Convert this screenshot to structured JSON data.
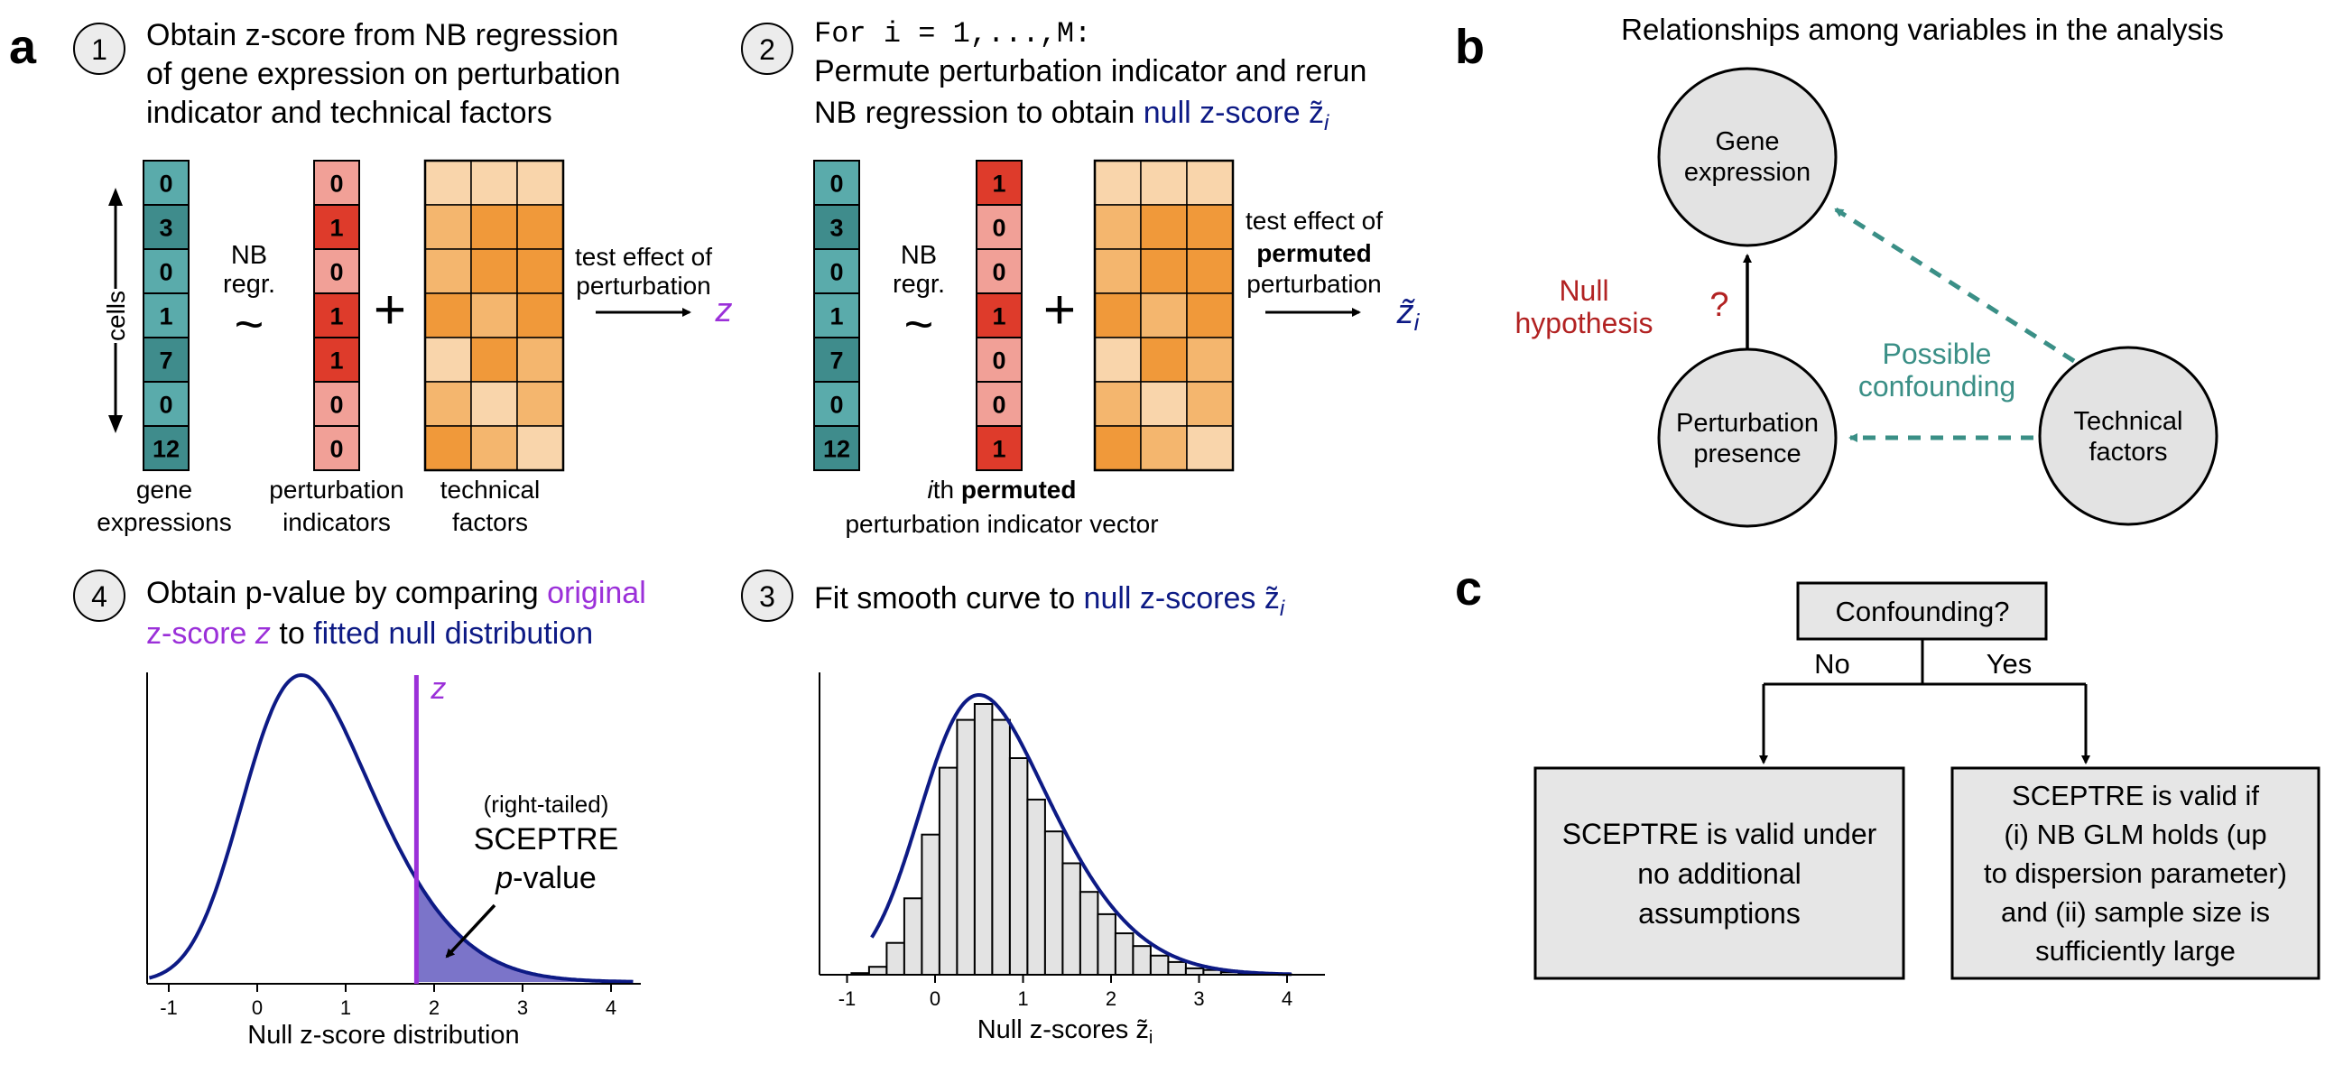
{
  "colors": {
    "teal_dark": "#3f8c8c",
    "teal_light": "#5aabab",
    "red_dark": "#de3b2b",
    "red_light": "#f1a097",
    "orange_dark": "#f0993a",
    "orange_mid": "#f4b66e",
    "orange_light": "#f9d5ab",
    "purple": "#9b30d9",
    "navy": "#0d1a85",
    "null_red": "#b22222",
    "confound_teal": "#3a8f86",
    "circle_fill": "#e3e3e3",
    "box_fill": "#e6e6e6"
  },
  "panel_a": {
    "label": "a",
    "step1": {
      "number": "1",
      "title": [
        "Obtain z-score from NB regression",
        "of gene expression on perturbation",
        "indicator and technical factors"
      ],
      "cells_label": "cells",
      "gene_values": [
        "0",
        "3",
        "0",
        "1",
        "7",
        "0",
        "12"
      ],
      "nb_label": [
        "NB",
        "regr."
      ],
      "tilde": "~",
      "perturbation_values": [
        "0",
        "1",
        "0",
        "1",
        "1",
        "0",
        "0"
      ],
      "plus": "+",
      "test_label": [
        "test effect of",
        "perturbation"
      ],
      "result": "z",
      "captions": {
        "gene": [
          "gene",
          "expressions"
        ],
        "perturbation": [
          "perturbation",
          "indicators"
        ],
        "technical": [
          "technical",
          "factors"
        ]
      }
    },
    "step2": {
      "number": "2",
      "loop": "For i = 1,...,M:",
      "title_line1": "Permute perturbation indicator and rerun",
      "title_line2_prefix": "NB regression to obtain ",
      "title_line2_highlight": "null z-score z̃",
      "title_line2_sub": "i",
      "gene_values": [
        "0",
        "3",
        "0",
        "1",
        "7",
        "0",
        "12"
      ],
      "nb_label": [
        "NB",
        "regr."
      ],
      "tilde": "~",
      "permuted_values": [
        "1",
        "0",
        "0",
        "1",
        "0",
        "0",
        "1"
      ],
      "plus": "+",
      "test_line1": "test effect of",
      "test_line2": "permuted",
      "test_line3": "perturbation",
      "result": "z̃",
      "result_sub": "i",
      "caption_line1_italic": "i",
      "caption_line1_rest": "th ",
      "caption_line1_bold": "permuted",
      "caption_line2": "perturbation indicator vector"
    },
    "step3": {
      "number": "3",
      "title_prefix": "Fit smooth curve to ",
      "title_highlight": "null z-scores z̃",
      "title_sub": "i",
      "xlabel": "Null z-scores z̃",
      "xlabel_sub": "i",
      "ticks": [
        "-1",
        "0",
        "1",
        "2",
        "3",
        "4"
      ]
    },
    "step4": {
      "number": "4",
      "title_line1_prefix": "Obtain p-value by comparing ",
      "title_line1_highlight": "original",
      "title_line2_highlight_a": "z-score ",
      "title_line2_highlight_z": "z",
      "title_line2_mid": " to ",
      "title_line2_navy": "fitted null distribution",
      "z_marker": "z",
      "annotation": [
        "(right-tailed)",
        "SCEPTRE",
        "p",
        "-value"
      ],
      "xlabel": "Null z-score distribution",
      "ticks": [
        "-1",
        "0",
        "1",
        "2",
        "3",
        "4"
      ]
    }
  },
  "panel_b": {
    "label": "b",
    "title": "Relationships among variables in the analysis",
    "gene_node": [
      "Gene",
      "expression"
    ],
    "perturbation_node": [
      "Perturbation",
      "presence"
    ],
    "technical_node": [
      "Technical",
      "factors"
    ],
    "null_label": [
      "Null",
      "hypothesis"
    ],
    "question": "?",
    "confounding_label": [
      "Possible",
      "confounding"
    ]
  },
  "panel_c": {
    "label": "c",
    "question_box": "Confounding?",
    "no": "No",
    "yes": "Yes",
    "left_box": [
      "SCEPTRE is valid under",
      "no additional",
      "assumptions"
    ],
    "right_box": [
      "SCEPTRE is valid if",
      "(i) NB GLM holds (up",
      "to dispersion parameter)",
      "and (ii) sample size is",
      "sufficiently large"
    ]
  },
  "chart_data": [
    {
      "type": "area",
      "curve": "skewed density (right-skewed)",
      "observed_z": 1.8,
      "xlim": [
        -1.3,
        4.3
      ],
      "xticks": [
        -1,
        0,
        1,
        2,
        3,
        4
      ],
      "xlabel": "Null z-score distribution",
      "mode": 0.45,
      "shaded_region": "x >= 1.8"
    },
    {
      "type": "bar",
      "x": [
        -0.85,
        -0.65,
        -0.45,
        -0.25,
        -0.05,
        0.15,
        0.35,
        0.55,
        0.75,
        0.95,
        1.15,
        1.35,
        1.55,
        1.75,
        1.95,
        2.15,
        2.35,
        2.55,
        2.75,
        2.95,
        3.15,
        3.35,
        3.55,
        3.75,
        3.95
      ],
      "values": [
        0.005,
        0.025,
        0.1,
        0.24,
        0.44,
        0.65,
        0.8,
        0.85,
        0.8,
        0.68,
        0.55,
        0.45,
        0.35,
        0.26,
        0.19,
        0.13,
        0.09,
        0.06,
        0.04,
        0.02,
        0.015,
        0.008,
        0.004,
        0.002,
        0.001
      ],
      "bin_width": 0.2,
      "xlim": [
        -1.3,
        4.3
      ],
      "xticks": [
        -1,
        0,
        1,
        2,
        3,
        4
      ],
      "xlabel": "Null z-scores z̃i",
      "overlay": "smooth fitted density curve"
    }
  ]
}
